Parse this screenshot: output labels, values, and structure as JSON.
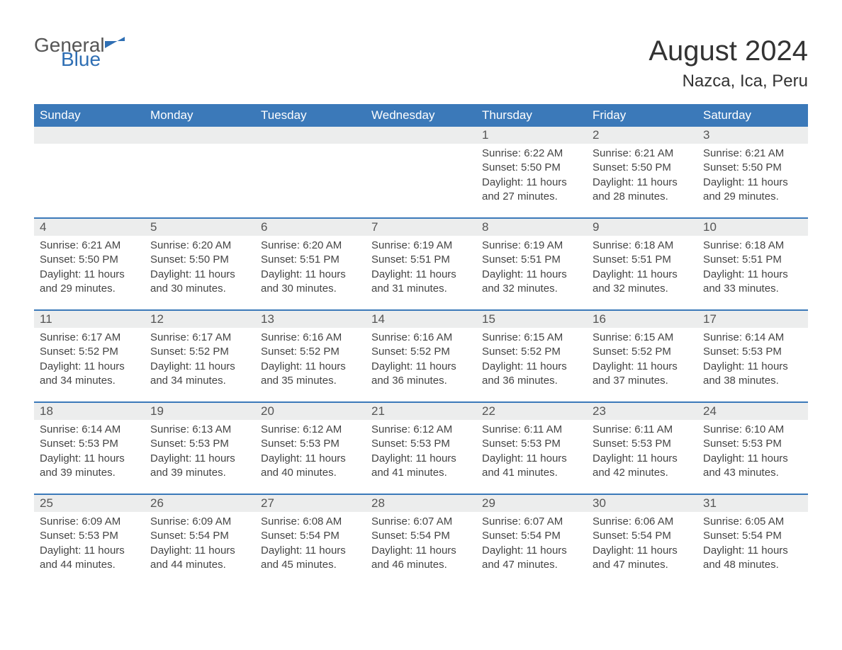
{
  "logo": {
    "text1": "General",
    "text2": "Blue",
    "shape_color": "#2f6fb4"
  },
  "title": "August 2024",
  "location": "Nazca, Ica, Peru",
  "colors": {
    "header_bg": "#3b79b9",
    "header_text": "#ffffff",
    "daynum_bg": "#eceded",
    "body_text": "#444444",
    "border": "#3b79b9"
  },
  "weekdays": [
    "Sunday",
    "Monday",
    "Tuesday",
    "Wednesday",
    "Thursday",
    "Friday",
    "Saturday"
  ],
  "weeks": [
    [
      null,
      null,
      null,
      null,
      {
        "n": "1",
        "sr": "6:22 AM",
        "ss": "5:50 PM",
        "dl": "11 hours and 27 minutes."
      },
      {
        "n": "2",
        "sr": "6:21 AM",
        "ss": "5:50 PM",
        "dl": "11 hours and 28 minutes."
      },
      {
        "n": "3",
        "sr": "6:21 AM",
        "ss": "5:50 PM",
        "dl": "11 hours and 29 minutes."
      }
    ],
    [
      {
        "n": "4",
        "sr": "6:21 AM",
        "ss": "5:50 PM",
        "dl": "11 hours and 29 minutes."
      },
      {
        "n": "5",
        "sr": "6:20 AM",
        "ss": "5:50 PM",
        "dl": "11 hours and 30 minutes."
      },
      {
        "n": "6",
        "sr": "6:20 AM",
        "ss": "5:51 PM",
        "dl": "11 hours and 30 minutes."
      },
      {
        "n": "7",
        "sr": "6:19 AM",
        "ss": "5:51 PM",
        "dl": "11 hours and 31 minutes."
      },
      {
        "n": "8",
        "sr": "6:19 AM",
        "ss": "5:51 PM",
        "dl": "11 hours and 32 minutes."
      },
      {
        "n": "9",
        "sr": "6:18 AM",
        "ss": "5:51 PM",
        "dl": "11 hours and 32 minutes."
      },
      {
        "n": "10",
        "sr": "6:18 AM",
        "ss": "5:51 PM",
        "dl": "11 hours and 33 minutes."
      }
    ],
    [
      {
        "n": "11",
        "sr": "6:17 AM",
        "ss": "5:52 PM",
        "dl": "11 hours and 34 minutes."
      },
      {
        "n": "12",
        "sr": "6:17 AM",
        "ss": "5:52 PM",
        "dl": "11 hours and 34 minutes."
      },
      {
        "n": "13",
        "sr": "6:16 AM",
        "ss": "5:52 PM",
        "dl": "11 hours and 35 minutes."
      },
      {
        "n": "14",
        "sr": "6:16 AM",
        "ss": "5:52 PM",
        "dl": "11 hours and 36 minutes."
      },
      {
        "n": "15",
        "sr": "6:15 AM",
        "ss": "5:52 PM",
        "dl": "11 hours and 36 minutes."
      },
      {
        "n": "16",
        "sr": "6:15 AM",
        "ss": "5:52 PM",
        "dl": "11 hours and 37 minutes."
      },
      {
        "n": "17",
        "sr": "6:14 AM",
        "ss": "5:53 PM",
        "dl": "11 hours and 38 minutes."
      }
    ],
    [
      {
        "n": "18",
        "sr": "6:14 AM",
        "ss": "5:53 PM",
        "dl": "11 hours and 39 minutes."
      },
      {
        "n": "19",
        "sr": "6:13 AM",
        "ss": "5:53 PM",
        "dl": "11 hours and 39 minutes."
      },
      {
        "n": "20",
        "sr": "6:12 AM",
        "ss": "5:53 PM",
        "dl": "11 hours and 40 minutes."
      },
      {
        "n": "21",
        "sr": "6:12 AM",
        "ss": "5:53 PM",
        "dl": "11 hours and 41 minutes."
      },
      {
        "n": "22",
        "sr": "6:11 AM",
        "ss": "5:53 PM",
        "dl": "11 hours and 41 minutes."
      },
      {
        "n": "23",
        "sr": "6:11 AM",
        "ss": "5:53 PM",
        "dl": "11 hours and 42 minutes."
      },
      {
        "n": "24",
        "sr": "6:10 AM",
        "ss": "5:53 PM",
        "dl": "11 hours and 43 minutes."
      }
    ],
    [
      {
        "n": "25",
        "sr": "6:09 AM",
        "ss": "5:53 PM",
        "dl": "11 hours and 44 minutes."
      },
      {
        "n": "26",
        "sr": "6:09 AM",
        "ss": "5:54 PM",
        "dl": "11 hours and 44 minutes."
      },
      {
        "n": "27",
        "sr": "6:08 AM",
        "ss": "5:54 PM",
        "dl": "11 hours and 45 minutes."
      },
      {
        "n": "28",
        "sr": "6:07 AM",
        "ss": "5:54 PM",
        "dl": "11 hours and 46 minutes."
      },
      {
        "n": "29",
        "sr": "6:07 AM",
        "ss": "5:54 PM",
        "dl": "11 hours and 47 minutes."
      },
      {
        "n": "30",
        "sr": "6:06 AM",
        "ss": "5:54 PM",
        "dl": "11 hours and 47 minutes."
      },
      {
        "n": "31",
        "sr": "6:05 AM",
        "ss": "5:54 PM",
        "dl": "11 hours and 48 minutes."
      }
    ]
  ],
  "labels": {
    "sunrise": "Sunrise: ",
    "sunset": "Sunset: ",
    "daylight": "Daylight: "
  }
}
